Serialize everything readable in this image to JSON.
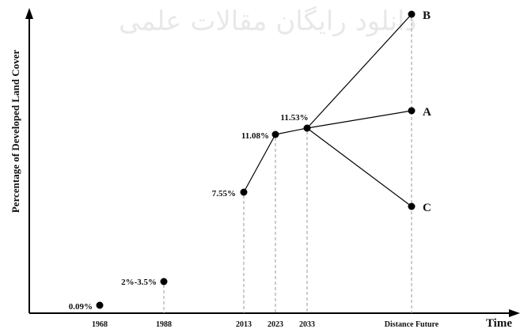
{
  "watermark_text": "دانلود رایگان مقالات علمی",
  "chart_data": {
    "type": "line",
    "ylabel": "Percentage of Developed Land Cover",
    "xlabel": "Time",
    "categories": [
      "1968",
      "1988",
      "2013",
      "2023",
      "2033",
      "Distance Future"
    ],
    "points": [
      {
        "x": "1968",
        "label": "0.09%"
      },
      {
        "x": "1988",
        "label": "2%-3.5%"
      },
      {
        "x": "2013",
        "label": "7.55%"
      },
      {
        "x": "2023",
        "label": "11.08%"
      },
      {
        "x": "2033",
        "label": "11.53%"
      }
    ],
    "scenarios": [
      {
        "name": "B",
        "from": "2033",
        "x": "Distance Future",
        "level": "high"
      },
      {
        "name": "A",
        "from": "2033",
        "x": "Distance Future",
        "level": "medium"
      },
      {
        "name": "C",
        "from": "2033",
        "x": "Distance Future",
        "level": "low"
      }
    ]
  }
}
